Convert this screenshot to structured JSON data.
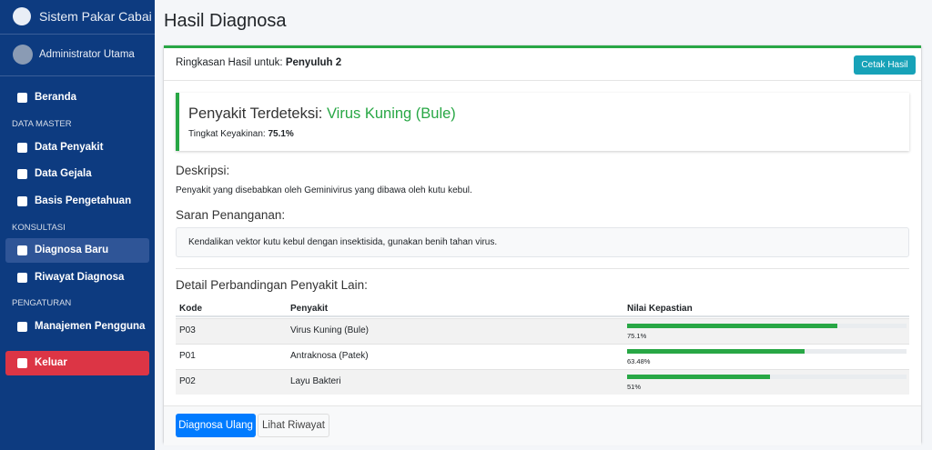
{
  "sidebar": {
    "brand": "Sistem Pakar Cabai",
    "user": "Administrator Utama",
    "menu": {
      "beranda": "Beranda",
      "data_master": "DATA MASTER",
      "data_penyakit": "Data Penyakit",
      "data_gejala": "Data Gejala",
      "basis": "Basis Pengetahuan",
      "konsultasi": "KONSULTASI",
      "diagnosa_baru": "Diagnosa Baru",
      "riwayat": "Riwayat Diagnosa",
      "pengaturan": "PENGATURAN",
      "pengguna": "Manajemen Pengguna",
      "keluar": "Keluar"
    }
  },
  "header": {
    "title": "Hasil Diagnosa"
  },
  "card": {
    "summary_label": "Ringkasan Hasil untuk:",
    "summary_name": "Penyuluh 2",
    "print_button": "Cetak Hasil",
    "result": {
      "label": "Penyakit Terdeteksi:",
      "disease": "Virus Kuning (Bule)",
      "confidence_label": "Tingkat Keyakinan:",
      "confidence": "75.1%"
    },
    "description": {
      "heading": "Deskripsi:",
      "text": "Penyakit yang disebabkan oleh Geminivirus yang dibawa oleh kutu kebul."
    },
    "treatment": {
      "heading": "Saran Penanganan:",
      "text": "Kendalikan vektor kutu kebul dengan insektisida, gunakan benih tahan virus."
    },
    "comparison": {
      "title": "Detail Perbandingan Penyakit Lain:",
      "headers": [
        "Kode",
        "Penyakit",
        "Nilai Kepastian"
      ],
      "rows": [
        {
          "kode": "P03",
          "penyakit": "Virus Kuning (Bule)",
          "nilai": 75.1,
          "nilai_label": "75.1%"
        },
        {
          "kode": "P01",
          "penyakit": "Antraknosa (Patek)",
          "nilai": 63.48,
          "nilai_label": "63.48%"
        },
        {
          "kode": "P02",
          "penyakit": "Layu Bakteri",
          "nilai": 51,
          "nilai_label": "51%"
        }
      ]
    },
    "buttons": {
      "diagnosa_ulang": "Diagnosa Ulang",
      "lihat_riwayat": "Lihat Riwayat"
    }
  }
}
